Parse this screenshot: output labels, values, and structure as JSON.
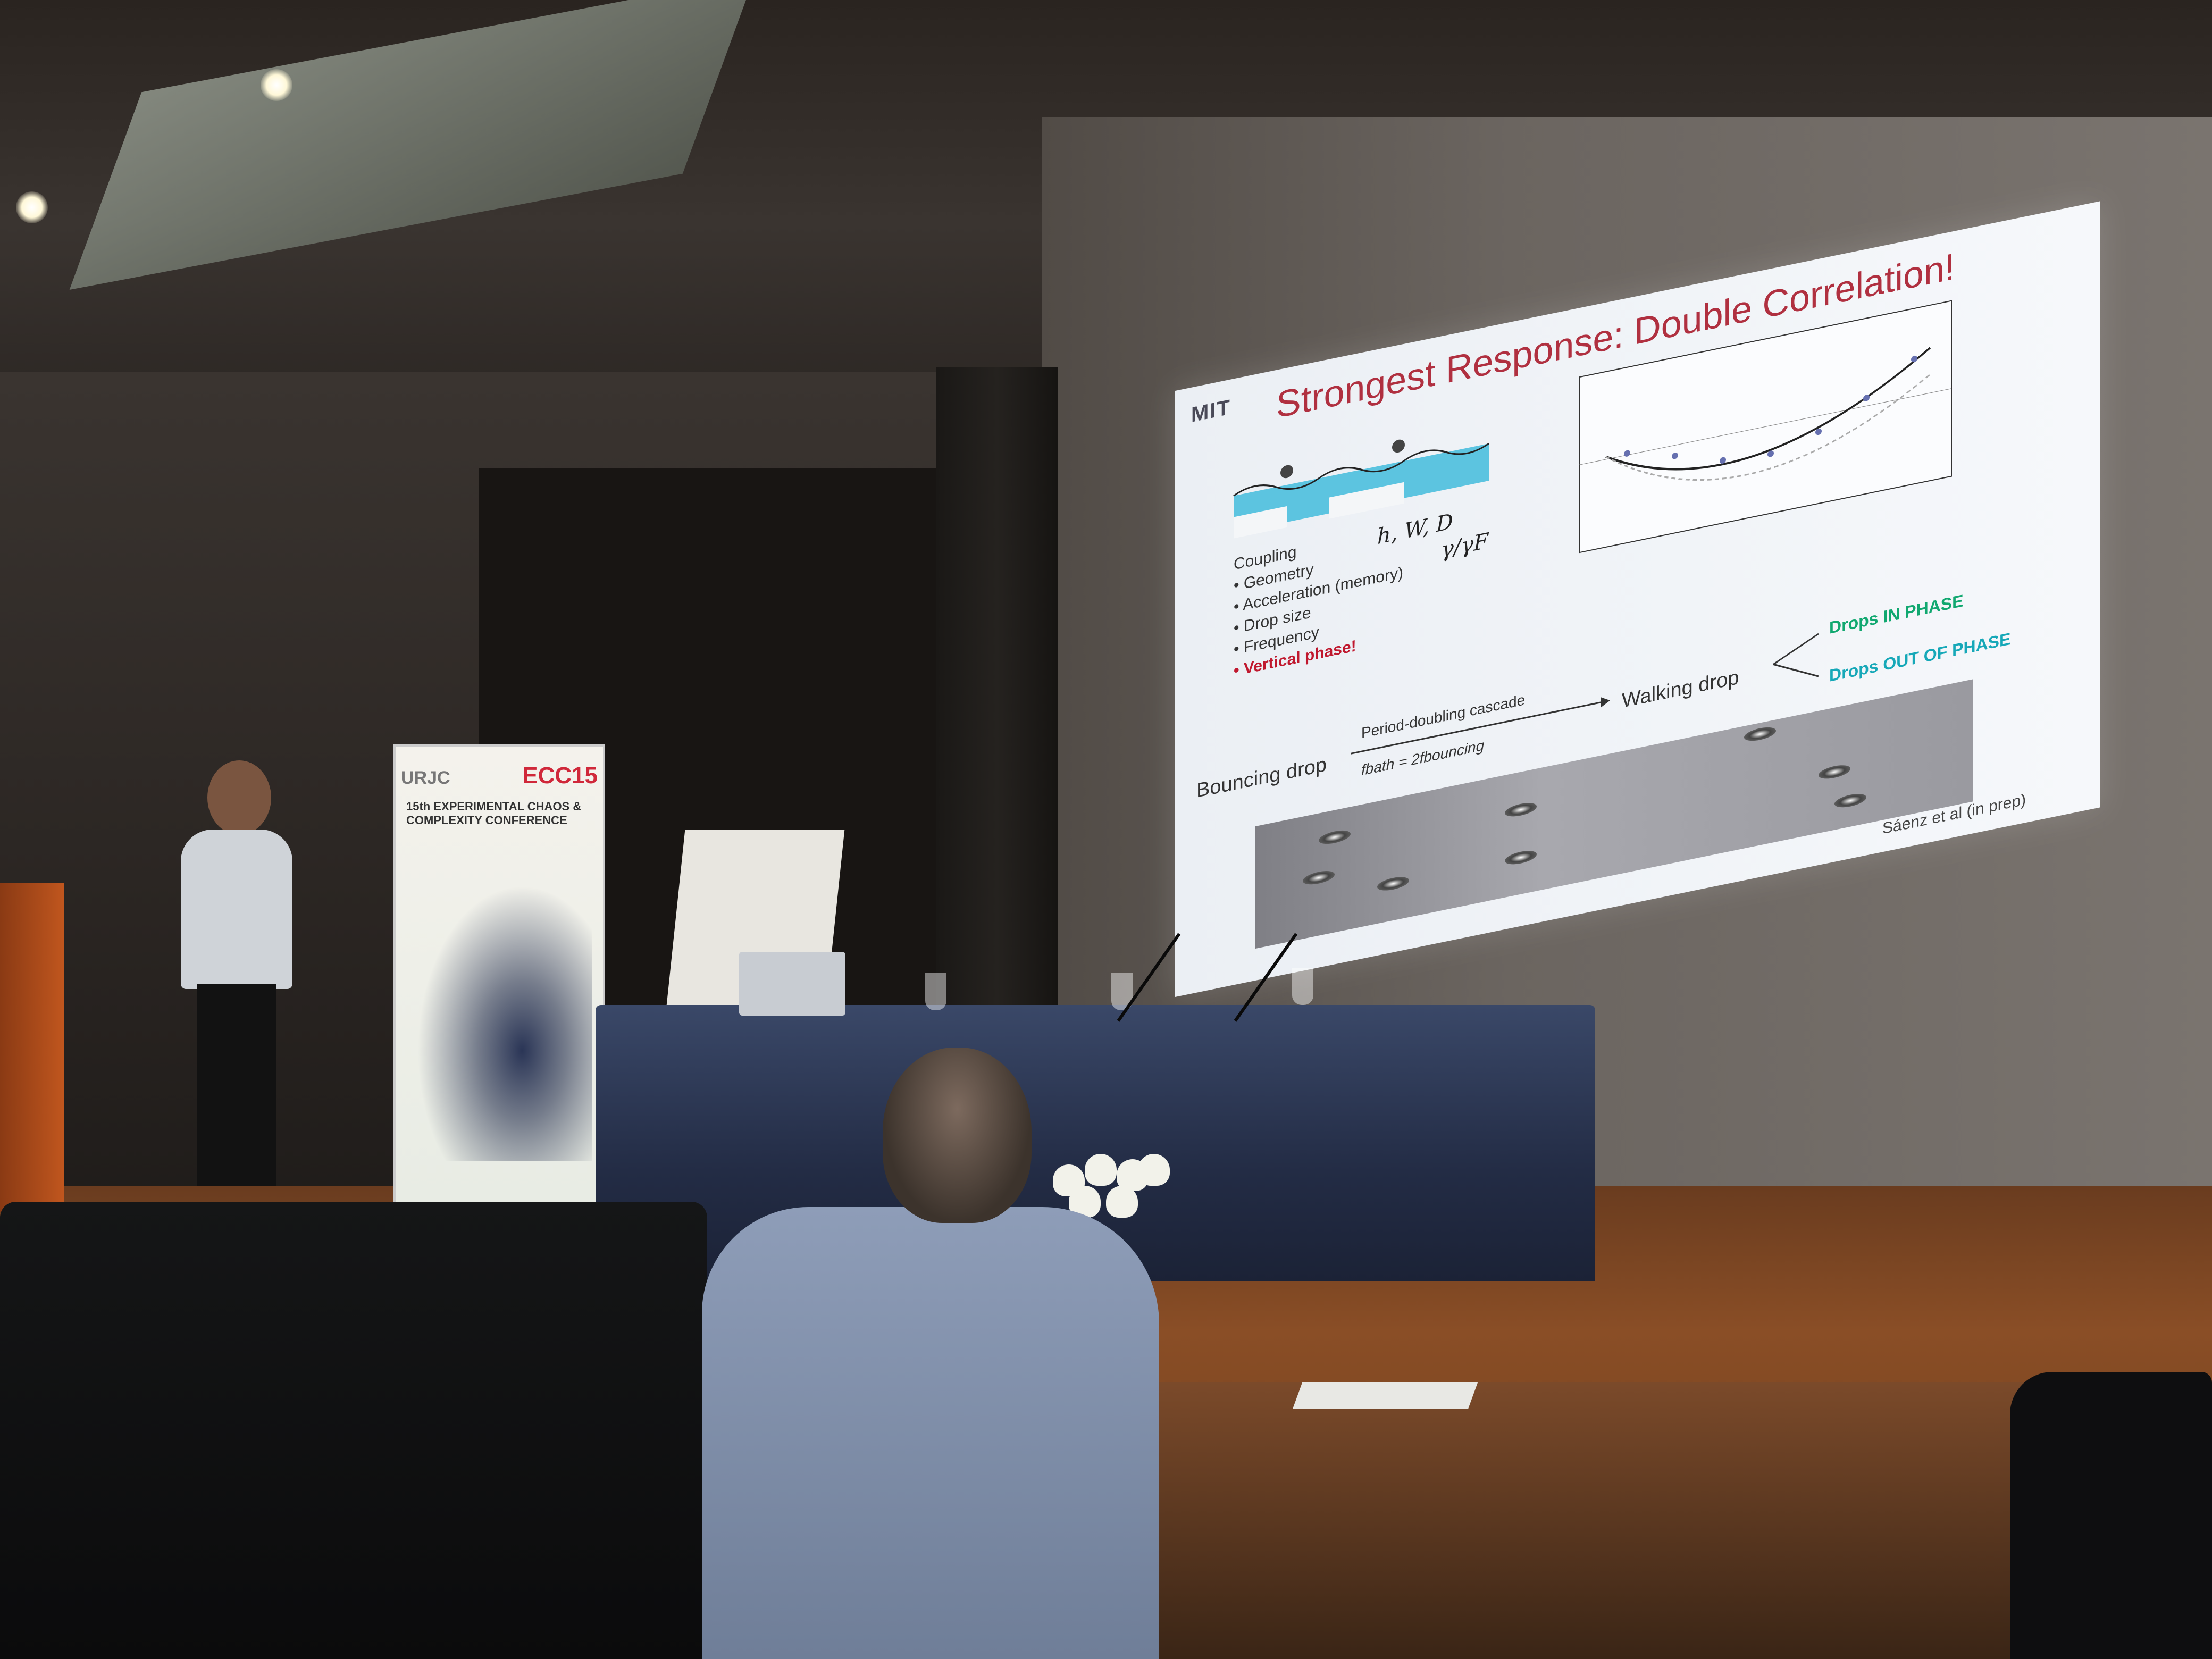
{
  "slide": {
    "logo": "MIT",
    "title": "Strongest Response: Double Correlation!",
    "coupling_heading": "Coupling",
    "coupling_items": [
      "Geometry",
      "Acceleration (memory)",
      "Drop size",
      "Frequency"
    ],
    "vertical_phase": "Vertical phase!",
    "formula_geometry": "h, W, D",
    "formula_acceleration": "γ/γF",
    "flow": {
      "bouncing": "Bouncing drop",
      "cascade": "Period-doubling cascade",
      "cascade_condition": "fbath = 2fbouncing",
      "walking": "Walking drop",
      "in_phase": "Drops IN PHASE",
      "out_of_phase": "Drops OUT OF PHASE"
    },
    "credit": "Sáenz et al (in prep)"
  },
  "banner": {
    "left_logo": "URJC",
    "right_logo": "ECC15",
    "subtitle": "15th EXPERIMENTAL CHAOS & COMPLEXITY CONFERENCE"
  },
  "colors": {
    "slide_title": "#b03040",
    "vertical_phase": "#c0182e",
    "in_phase": "#11a870",
    "out_of_phase": "#16a8b8"
  }
}
